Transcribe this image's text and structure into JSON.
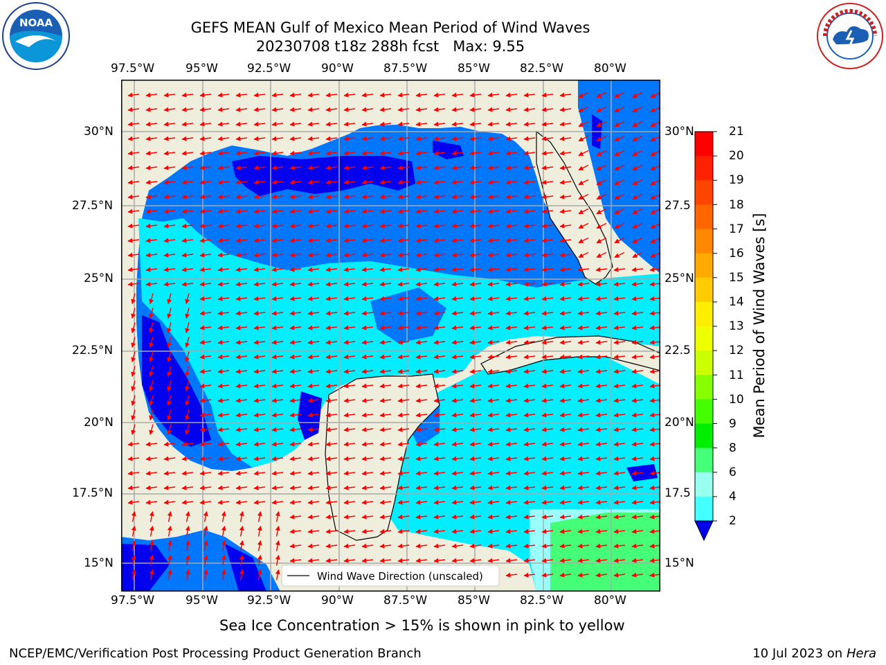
{
  "title_line1": "GEFS MEAN Gulf of Mexico Mean Period of Wind Waves",
  "title_line2": "20230708 t18z 288h fcst   Max: 9.55",
  "lon_ticks": [
    "97.5°W",
    "95°W",
    "92.5°W",
    "90°W",
    "87.5°W",
    "85°W",
    "82.5°W",
    "80°W"
  ],
  "lat_ticks_left": [
    "30°N",
    "27.5°N",
    "25°N",
    "22.5°N",
    "20°N",
    "17.5°N",
    "15°N"
  ],
  "lat_ticks_right": [
    "30°N",
    "27.5",
    "25°N",
    "22.5",
    "20°N",
    "17.5",
    "15°N"
  ],
  "legend_label": "Wind Wave Direction (unscaled)",
  "colorbar": {
    "label": "Mean Period of Wind Waves [s]",
    "ticks": [
      "21",
      "20",
      "19",
      "18",
      "17",
      "16",
      "15",
      "14",
      "13",
      "12",
      "11",
      "10",
      "9",
      "8",
      "6",
      "4",
      "2"
    ],
    "colors": [
      "#ff0000",
      "#ff2200",
      "#ff4400",
      "#ff6600",
      "#ff8800",
      "#ffaa00",
      "#ffcc00",
      "#ffee00",
      "#eeff00",
      "#ccff00",
      "#88ff00",
      "#44ff00",
      "#00ee00",
      "#44ff77",
      "#99ffee",
      "#44ffff",
      "#00eeff",
      "#0077ff",
      "#0000ee"
    ]
  },
  "sea_ice_note": "Sea Ice Concentration > 15% is shown in pink to yellow",
  "footer_left": "NCEP/EMC/Verification Post Processing Product Generation Branch",
  "footer_date": "10 Jul 2023 on ",
  "footer_host": "Hera",
  "logo_left_text": "NOAA",
  "logo_right_text": "NATIONAL WEATHER SERVICE",
  "colors": {
    "land": "#efeedd",
    "sea_dark": "#0000ee",
    "sea_mid": "#0077ff",
    "sea_light": "#00eeff",
    "sea_pale": "#99ffff",
    "sea_green": "#44ff77",
    "arrow": "#ff0000"
  }
}
